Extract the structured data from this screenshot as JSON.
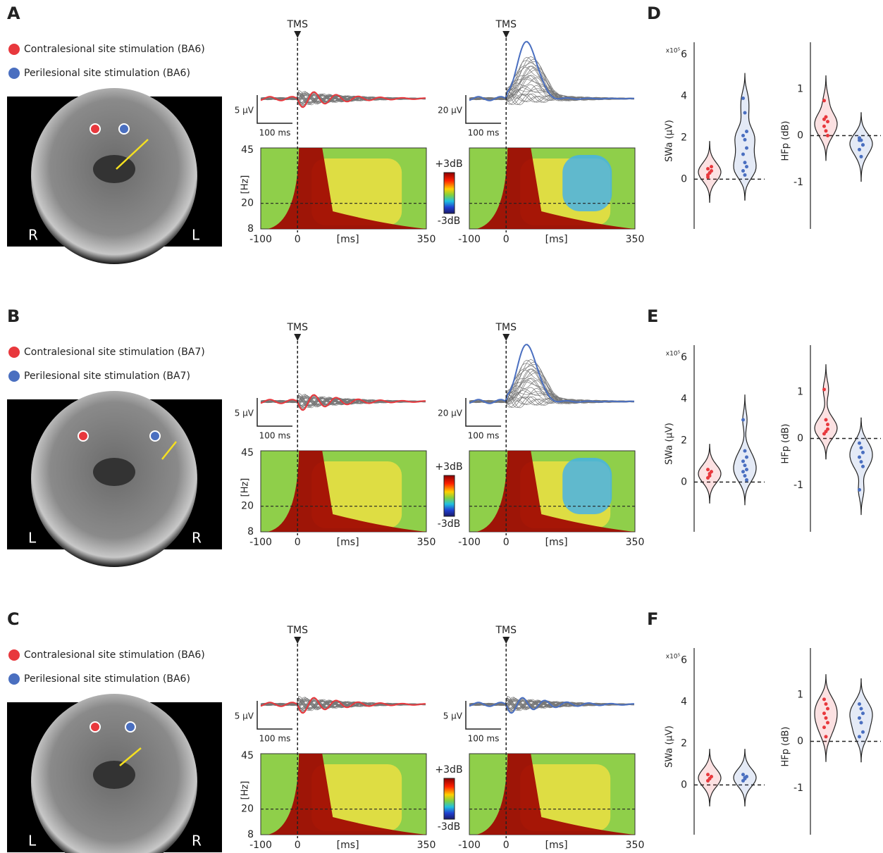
{
  "rows": [
    {
      "label": "A",
      "legend": [
        "Contralesional site stimulation (BA6)",
        "Perilesional site stimulation (BA6)"
      ],
      "mri_sides": [
        "R",
        "L"
      ],
      "traces": [
        {
          "event": "TMS",
          "amp_scale": "5 µV",
          "time_scale": "100 ms"
        },
        {
          "event": "TMS",
          "amp_scale": "20 µV",
          "time_scale": "100 ms"
        }
      ],
      "tf_axes": {
        "ylabel": "[Hz]",
        "ylim": [
          8,
          45
        ],
        "yticks": [
          45,
          20,
          8
        ],
        "xlabel": "[ms]",
        "xlim": [
          -100,
          350
        ],
        "xticks": [
          -100,
          0,
          350
        ],
        "colorbar": [
          "+3dB",
          "-3dB"
        ]
      },
      "stats_label": "D",
      "swa": {
        "ylabel": "SWa (µV)",
        "multiplier": "x10⁵",
        "ylim": [
          -2.4,
          6.6
        ],
        "yticks": [
          0,
          2,
          4,
          6
        ],
        "groups": [
          {
            "color": "#e8383d",
            "values": [
              0.2,
              0.3,
              0.4,
              0.5,
              0.3,
              0.6,
              0.1
            ]
          },
          {
            "color": "#4a6fc0",
            "values": [
              3.9,
              3.2,
              2.3,
              2.1,
              1.9,
              1.5,
              1.2,
              0.8,
              0.6,
              0.4,
              0.2
            ]
          }
        ]
      },
      "hfp": {
        "ylabel": "HFp (dB)",
        "ylim": [
          -2,
          2
        ],
        "yticks": [
          1,
          0,
          -1
        ],
        "groups": [
          {
            "color": "#e8383d",
            "values": [
              0.75,
              0.4,
              0.3,
              0.2,
              0.1,
              0.0,
              0.35
            ]
          },
          {
            "color": "#4a6fc0",
            "values": [
              -0.05,
              -0.1,
              -0.2,
              -0.3,
              -0.45,
              -0.2,
              -0.1
            ]
          }
        ]
      }
    },
    {
      "label": "B",
      "legend": [
        "Contralesional site stimulation (BA7)",
        "Perilesional site stimulation (BA7)"
      ],
      "mri_sides": [
        "L",
        "R"
      ],
      "traces": [
        {
          "event": "TMS",
          "amp_scale": "5 µV",
          "time_scale": "100 ms"
        },
        {
          "event": "TMS",
          "amp_scale": "20 µV",
          "time_scale": "100 ms"
        }
      ],
      "tf_axes": {
        "ylabel": "[Hz]",
        "ylim": [
          8,
          45
        ],
        "yticks": [
          45,
          20,
          8
        ],
        "xlabel": "[ms]",
        "xlim": [
          -100,
          350
        ],
        "xticks": [
          -100,
          0,
          350
        ],
        "colorbar": [
          "+3dB",
          "-3dB"
        ]
      },
      "stats_label": "E",
      "swa": {
        "ylabel": "SWa (µV)",
        "multiplier": "x10⁵",
        "ylim": [
          -2.4,
          6.6
        ],
        "yticks": [
          0,
          2,
          4,
          6
        ],
        "groups": [
          {
            "color": "#e8383d",
            "values": [
              0.2,
              0.4,
              0.5,
              0.6,
              0.3
            ]
          },
          {
            "color": "#4a6fc0",
            "values": [
              3.0,
              1.5,
              1.2,
              1.0,
              0.8,
              0.6,
              0.5,
              0.3,
              0.1
            ]
          }
        ]
      },
      "hfp": {
        "ylabel": "HFp (dB)",
        "ylim": [
          -2,
          2
        ],
        "yticks": [
          1,
          0,
          -1
        ],
        "groups": [
          {
            "color": "#e8383d",
            "values": [
              1.05,
              0.4,
              0.3,
              0.1,
              0.15,
              0.2
            ]
          },
          {
            "color": "#4a6fc0",
            "values": [
              -0.1,
              -0.2,
              -0.3,
              -0.4,
              -0.5,
              -0.6,
              -1.1
            ]
          }
        ]
      }
    },
    {
      "label": "C",
      "legend": [
        "Contralesional site stimulation (BA6)",
        "Perilesional site stimulation (BA6)"
      ],
      "mri_sides": [
        "L",
        "R"
      ],
      "traces": [
        {
          "event": "TMS",
          "amp_scale": "5 µV",
          "time_scale": "100 ms"
        },
        {
          "event": "TMS",
          "amp_scale": "5 µV",
          "time_scale": "100 ms"
        }
      ],
      "tf_axes": {
        "ylabel": "[Hz]",
        "ylim": [
          8,
          45
        ],
        "yticks": [
          45,
          20,
          8
        ],
        "xlabel": "[ms]",
        "xlim": [
          -100,
          350
        ],
        "xticks": [
          -100,
          0,
          350
        ],
        "colorbar": [
          "+3dB",
          "-3dB"
        ]
      },
      "stats_label": "F",
      "swa": {
        "ylabel": "SWa (µV)",
        "multiplier": "x10⁵",
        "ylim": [
          -2.4,
          6.6
        ],
        "yticks": [
          0,
          2,
          4,
          6
        ],
        "groups": [
          {
            "color": "#e8383d",
            "values": [
              0.2,
              0.3,
              0.4,
              0.5,
              0.3
            ]
          },
          {
            "color": "#4a6fc0",
            "values": [
              0.2,
              0.3,
              0.4,
              0.5,
              0.35
            ]
          }
        ]
      },
      "hfp": {
        "ylabel": "HFp (dB)",
        "ylim": [
          -2,
          2
        ],
        "yticks": [
          1,
          0,
          -1
        ],
        "groups": [
          {
            "color": "#e8383d",
            "values": [
              0.9,
              0.8,
              0.7,
              0.6,
              0.5,
              0.4,
              0.3,
              0.1
            ]
          },
          {
            "color": "#4a6fc0",
            "values": [
              0.8,
              0.7,
              0.6,
              0.5,
              0.4,
              0.2,
              0.1
            ]
          }
        ]
      }
    }
  ]
}
